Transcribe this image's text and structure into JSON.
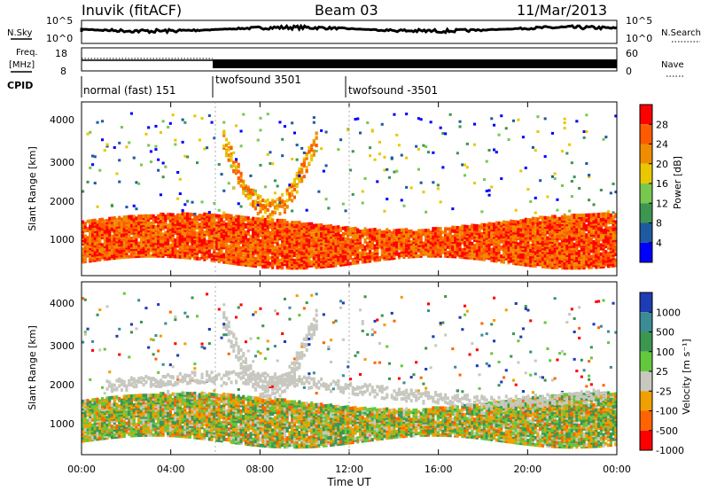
{
  "header": {
    "station": "Inuvik (fitACF)",
    "beam": "Beam 03",
    "date": "11/Mar/2013"
  },
  "strip_panels": {
    "nsky": {
      "label": "N.Sky",
      "ticks": [
        "10^5",
        "10^0"
      ],
      "right_label": "N.Search",
      "right_ticks": [
        "10^5",
        "10^0"
      ]
    },
    "freq": {
      "label_line1": "Freq.",
      "label_line2": "[MHz]",
      "ticks": [
        "18",
        "8"
      ],
      "right_label": "Nave",
      "right_ticks": [
        "60",
        "0"
      ]
    },
    "cpid": {
      "label": "CPID",
      "segments": [
        {
          "label": "normal (fast) 151",
          "start_h": 0,
          "end_h": 6
        },
        {
          "label": "twofsound 3501",
          "start_h": 6,
          "end_h": 12
        },
        {
          "label": "twofsound -3501",
          "start_h": 12,
          "end_h": 24
        }
      ]
    }
  },
  "x_axis": {
    "label": "Time UT",
    "ticks": [
      "00:00",
      "04:00",
      "08:00",
      "12:00",
      "16:00",
      "20:00",
      "00:00"
    ],
    "range_h": [
      0,
      24
    ]
  },
  "power_panel": {
    "ylabel": "Slant Range [km]",
    "yticks": [
      "1000",
      "2000",
      "3000",
      "4000"
    ],
    "colorbar_label": "Power [dB]",
    "colorbar_ticks": [
      "28",
      "24",
      "20",
      "16",
      "12",
      "8",
      "4"
    ],
    "colors": [
      "#ff0000",
      "#ff5a00",
      "#f08c00",
      "#e8c800",
      "#78c850",
      "#3c9650",
      "#1e5aa0",
      "#0000ff"
    ]
  },
  "velocity_panel": {
    "ylabel": "Slant Range [km]",
    "yticks": [
      "1000",
      "2000",
      "3000",
      "4000"
    ],
    "colorbar_label": "Velocity [m s⁻¹]",
    "colorbar_ticks": [
      "1000",
      "500",
      "100",
      "25",
      "-25",
      "-100",
      "-500",
      "-1000"
    ],
    "colors": [
      "#1e3cb4",
      "#3c8c96",
      "#3c9650",
      "#64c83c",
      "#c8c8c0",
      "#f0a000",
      "#ff6400",
      "#ff0000"
    ]
  },
  "chart_data": [
    {
      "type": "heatmap",
      "title": "Inuvik (fitACF) Beam 03 11/Mar/2013",
      "xlabel": "Time UT",
      "ylabel": "Slant Range [km]",
      "x_range_h": [
        0,
        24
      ],
      "y_range_km": [
        180,
        4500
      ],
      "colorbar": "Power [dB]",
      "colorbar_range": [
        0,
        30
      ],
      "features": [
        {
          "name": "main echo band",
          "range_km": [
            500,
            1500
          ],
          "power_db": 28
        },
        {
          "name": "dawn arc",
          "time_h": [
            6.5,
            10
          ],
          "range_km": [
            1200,
            3800
          ]
        }
      ]
    },
    {
      "type": "heatmap",
      "title": "Inuvik (fitACF) Beam 03 11/Mar/2013",
      "xlabel": "Time UT",
      "ylabel": "Slant Range [km]",
      "x_range_h": [
        0,
        24
      ],
      "y_range_km": [
        180,
        4500
      ],
      "colorbar": "Velocity [m s⁻¹]",
      "colorbar_range": [
        -1000,
        1000
      ],
      "features": [
        {
          "name": "ground scatter band",
          "range_km": [
            1200,
            2200
          ],
          "velocity_ms": 0
        },
        {
          "name": "morning negative flow",
          "time_h": [
            6,
            11
          ],
          "range_km": [
            300,
            1600
          ],
          "velocity_ms": 300
        }
      ]
    }
  ]
}
